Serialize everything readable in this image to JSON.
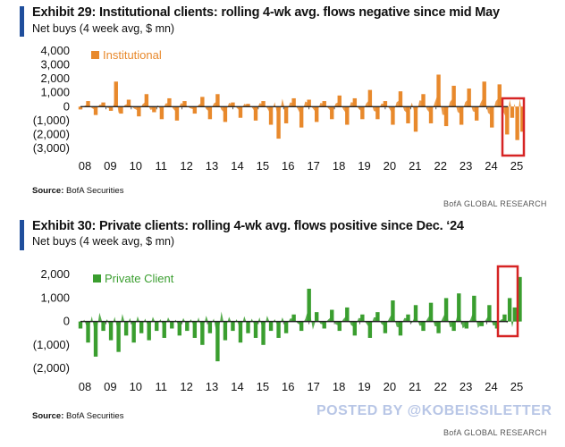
{
  "chart_data": [
    {
      "type": "area",
      "title": "Exhibit 29: Institutional clients: rolling 4-wk avg. flows negative since mid May",
      "subtitle": "Net buys (4 week avg, $ mn)",
      "source_label": "Source:",
      "source_text": "BofA Securities",
      "brand": "BofA GLOBAL RESEARCH",
      "series": [
        {
          "name": "Institutional",
          "color": "#e8892c"
        }
      ],
      "x_ticks": [
        "08",
        "09",
        "10",
        "11",
        "12",
        "13",
        "14",
        "15",
        "16",
        "17",
        "18",
        "19",
        "20",
        "21",
        "22",
        "23",
        "24",
        "25"
      ],
      "y_ticks": [
        "4,000",
        "3,000",
        "2,000",
        "1,000",
        "0",
        "(1,000)",
        "(2,000)",
        "(3,000)"
      ],
      "y_tick_values": [
        4000,
        3000,
        2000,
        1000,
        0,
        -1000,
        -2000,
        -3000
      ],
      "ylim": [
        -3000,
        4000
      ],
      "xlim": [
        2008,
        2025.6
      ],
      "data": [
        [
          2008.0,
          -200
        ],
        [
          2008.3,
          400
        ],
        [
          2008.6,
          -600
        ],
        [
          2008.9,
          300
        ],
        [
          2009.2,
          -300
        ],
        [
          2009.4,
          1800
        ],
        [
          2009.6,
          -500
        ],
        [
          2009.9,
          500
        ],
        [
          2010.3,
          -700
        ],
        [
          2010.6,
          900
        ],
        [
          2010.9,
          -400
        ],
        [
          2011.2,
          -900
        ],
        [
          2011.5,
          600
        ],
        [
          2011.8,
          -1000
        ],
        [
          2012.1,
          400
        ],
        [
          2012.5,
          -500
        ],
        [
          2012.8,
          700
        ],
        [
          2013.1,
          -900
        ],
        [
          2013.4,
          900
        ],
        [
          2013.7,
          -1100
        ],
        [
          2014.0,
          300
        ],
        [
          2014.3,
          -800
        ],
        [
          2014.6,
          200
        ],
        [
          2014.9,
          -1000
        ],
        [
          2015.2,
          400
        ],
        [
          2015.5,
          -1300
        ],
        [
          2015.8,
          -2300
        ],
        [
          2016.1,
          -1200
        ],
        [
          2016.4,
          600
        ],
        [
          2016.7,
          -1500
        ],
        [
          2017.0,
          500
        ],
        [
          2017.3,
          -1100
        ],
        [
          2017.6,
          400
        ],
        [
          2017.9,
          -900
        ],
        [
          2018.2,
          800
        ],
        [
          2018.5,
          -1300
        ],
        [
          2018.8,
          600
        ],
        [
          2019.1,
          -900
        ],
        [
          2019.4,
          1200
        ],
        [
          2019.7,
          -900
        ],
        [
          2020.0,
          400
        ],
        [
          2020.3,
          -1300
        ],
        [
          2020.6,
          1100
        ],
        [
          2020.9,
          -1200
        ],
        [
          2021.2,
          -1800
        ],
        [
          2021.5,
          900
        ],
        [
          2021.8,
          -1200
        ],
        [
          2022.1,
          2300
        ],
        [
          2022.4,
          -1400
        ],
        [
          2022.7,
          1500
        ],
        [
          2023.0,
          -1300
        ],
        [
          2023.3,
          1300
        ],
        [
          2023.6,
          -1000
        ],
        [
          2023.9,
          1800
        ],
        [
          2024.2,
          -1500
        ],
        [
          2024.5,
          1600
        ],
        [
          2024.8,
          -2000
        ],
        [
          2025.0,
          -800
        ],
        [
          2025.2,
          -2400
        ],
        [
          2025.4,
          -1800
        ]
      ]
    },
    {
      "type": "area",
      "title": "Exhibit 30: Private clients: rolling 4-wk avg. flows positive since Dec. ‘24",
      "subtitle": "Net buys (4 week avg, $ mn)",
      "source_label": "Source:",
      "source_text": "BofA Securities",
      "brand": "BofA GLOBAL RESEARCH",
      "series": [
        {
          "name": "Private Client",
          "color": "#3a9e2f"
        }
      ],
      "x_ticks": [
        "08",
        "09",
        "10",
        "11",
        "12",
        "13",
        "14",
        "15",
        "16",
        "17",
        "18",
        "19",
        "20",
        "21",
        "22",
        "23",
        "24",
        "25"
      ],
      "y_ticks": [
        "2,000",
        "1,000",
        "0",
        "(1,000)",
        "(2,000)"
      ],
      "y_tick_values": [
        2000,
        1000,
        0,
        -1000,
        -2000
      ],
      "ylim": [
        -2000,
        2200
      ],
      "xlim": [
        2008,
        2025.6
      ],
      "data": [
        [
          2008.0,
          -300
        ],
        [
          2008.3,
          -900
        ],
        [
          2008.6,
          -1500
        ],
        [
          2008.9,
          -400
        ],
        [
          2009.2,
          -800
        ],
        [
          2009.5,
          -1300
        ],
        [
          2009.8,
          -600
        ],
        [
          2010.1,
          -900
        ],
        [
          2010.4,
          -500
        ],
        [
          2010.7,
          -800
        ],
        [
          2011.0,
          -400
        ],
        [
          2011.3,
          -700
        ],
        [
          2011.6,
          -300
        ],
        [
          2011.9,
          -600
        ],
        [
          2012.2,
          -400
        ],
        [
          2012.5,
          -700
        ],
        [
          2012.8,
          -1000
        ],
        [
          2013.1,
          -500
        ],
        [
          2013.4,
          -1700
        ],
        [
          2013.7,
          -800
        ],
        [
          2014.0,
          -400
        ],
        [
          2014.3,
          -900
        ],
        [
          2014.6,
          -500
        ],
        [
          2014.9,
          -700
        ],
        [
          2015.2,
          -1000
        ],
        [
          2015.5,
          -400
        ],
        [
          2015.8,
          -700
        ],
        [
          2016.1,
          -500
        ],
        [
          2016.4,
          300
        ],
        [
          2016.7,
          -400
        ],
        [
          2017.0,
          1400
        ],
        [
          2017.3,
          400
        ],
        [
          2017.6,
          -300
        ],
        [
          2017.9,
          500
        ],
        [
          2018.2,
          -400
        ],
        [
          2018.5,
          600
        ],
        [
          2018.8,
          -600
        ],
        [
          2019.1,
          300
        ],
        [
          2019.4,
          -700
        ],
        [
          2019.7,
          400
        ],
        [
          2020.0,
          -500
        ],
        [
          2020.3,
          900
        ],
        [
          2020.6,
          -600
        ],
        [
          2020.9,
          300
        ],
        [
          2021.2,
          700
        ],
        [
          2021.5,
          -400
        ],
        [
          2021.8,
          800
        ],
        [
          2022.1,
          -500
        ],
        [
          2022.4,
          1000
        ],
        [
          2022.7,
          -400
        ],
        [
          2022.9,
          1200
        ],
        [
          2023.2,
          -300
        ],
        [
          2023.5,
          1100
        ],
        [
          2023.8,
          -200
        ],
        [
          2024.1,
          700
        ],
        [
          2024.4,
          -300
        ],
        [
          2024.7,
          300
        ],
        [
          2024.9,
          1000
        ],
        [
          2025.1,
          600
        ],
        [
          2025.3,
          1900
        ]
      ]
    }
  ],
  "watermark": "POSTED BY @KOBEISSILETTER",
  "colors": {
    "accent": "#1f4e9c",
    "highlight": "#d62424"
  }
}
